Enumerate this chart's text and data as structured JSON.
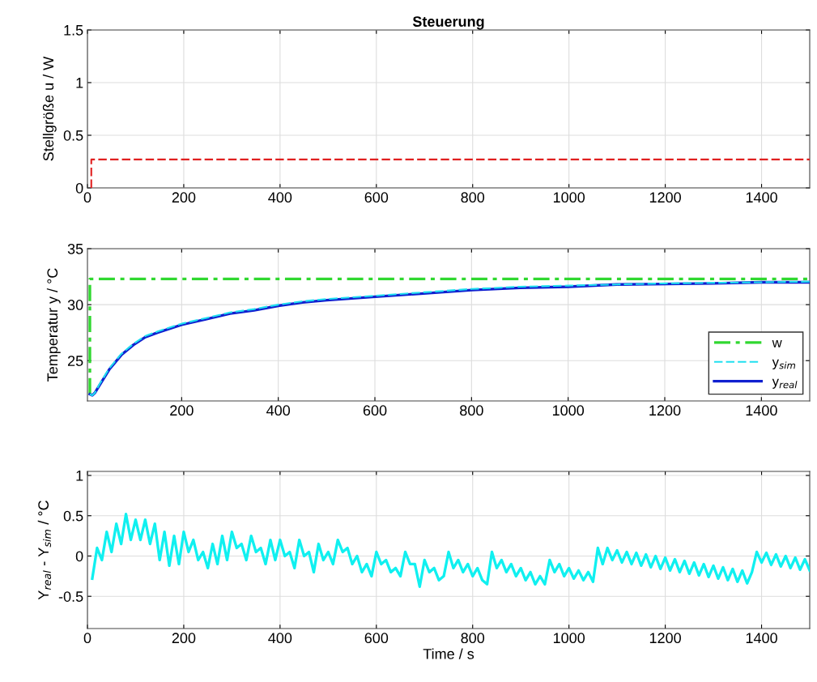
{
  "chart_data": [
    {
      "type": "line",
      "title": "Steuerung",
      "ylabel": "Stellgröße u / W",
      "xlim": [
        0,
        1500
      ],
      "ylim": [
        0,
        1.5
      ],
      "xticks": [
        0,
        200,
        400,
        600,
        800,
        1000,
        1200,
        1400
      ],
      "yticks": [
        0,
        0.5,
        1,
        1.5
      ],
      "grid": true,
      "legend": false,
      "series": [
        {
          "color": "#e02020",
          "line_style": "dashed",
          "x": [
            8,
            8,
            1500
          ],
          "values": [
            0,
            0.27,
            0.27
          ]
        }
      ]
    },
    {
      "type": "line",
      "ylabel": "Temperatur y / °C",
      "xlim": [
        5,
        1500
      ],
      "ylim": [
        21.4,
        35
      ],
      "xticks": [
        200,
        400,
        600,
        800,
        1000,
        1200,
        1400
      ],
      "yticks": [
        25,
        30,
        35
      ],
      "grid": true,
      "legend": "bottom right",
      "series": [
        {
          "name": "w",
          "color": "#30d830",
          "line_style": "dashdot",
          "x": [
            10,
            10,
            1500
          ],
          "values": [
            22,
            32.3,
            32.3
          ]
        },
        {
          "name": "y$_{sim}$",
          "color": "#20e0f0",
          "line_style": "dashed",
          "x": [
            10,
            15,
            20,
            30,
            50,
            75,
            100,
            125,
            150,
            200,
            250,
            300,
            350,
            400,
            450,
            500,
            600,
            700,
            800,
            900,
            1000,
            1100,
            1200,
            1300,
            1400,
            1500
          ],
          "values": [
            22.0,
            21.9,
            22.1,
            22.9,
            24.3,
            25.6,
            26.5,
            27.2,
            27.6,
            28.3,
            28.8,
            29.3,
            29.6,
            30.0,
            30.3,
            30.5,
            30.8,
            31.1,
            31.4,
            31.6,
            31.7,
            31.8,
            31.9,
            31.95,
            32.0,
            32.05
          ]
        },
        {
          "name": "y$_{real}$",
          "color": "#1020d0",
          "line_style": "solid",
          "x": [
            10,
            15,
            20,
            30,
            50,
            75,
            100,
            125,
            150,
            200,
            250,
            300,
            350,
            400,
            450,
            500,
            600,
            700,
            800,
            900,
            1000,
            1100,
            1200,
            1300,
            1400,
            1500
          ],
          "values": [
            22.0,
            21.9,
            22.1,
            22.8,
            24.2,
            25.5,
            26.4,
            27.1,
            27.5,
            28.2,
            28.7,
            29.2,
            29.5,
            29.9,
            30.2,
            30.4,
            30.7,
            31.0,
            31.3,
            31.5,
            31.6,
            31.8,
            31.85,
            31.9,
            32.0,
            32.0
          ]
        }
      ]
    },
    {
      "type": "line",
      "xlabel": "Time / s",
      "ylabel": "Y$_{real}$ - Y$_{sim}$ / °C",
      "xlim": [
        0,
        1500
      ],
      "ylim": [
        -0.9,
        1.05
      ],
      "xticks": [
        0,
        200,
        400,
        600,
        800,
        1000,
        1200,
        1400
      ],
      "yticks": [
        -0.5,
        0,
        0.5,
        1
      ],
      "grid": true,
      "legend": false,
      "series": [
        {
          "color": "#10f0f0",
          "line_style": "solid",
          "x": [
            10,
            20,
            30,
            40,
            50,
            60,
            70,
            80,
            90,
            100,
            110,
            120,
            130,
            140,
            150,
            160,
            170,
            180,
            190,
            200,
            210,
            220,
            230,
            240,
            250,
            260,
            270,
            280,
            290,
            300,
            310,
            320,
            330,
            340,
            350,
            360,
            370,
            380,
            390,
            400,
            410,
            420,
            430,
            440,
            450,
            460,
            470,
            480,
            490,
            500,
            510,
            520,
            530,
            540,
            550,
            560,
            570,
            580,
            590,
            600,
            610,
            620,
            630,
            640,
            650,
            660,
            670,
            680,
            690,
            700,
            710,
            720,
            730,
            740,
            750,
            760,
            770,
            780,
            790,
            800,
            810,
            820,
            830,
            840,
            850,
            860,
            870,
            880,
            890,
            900,
            910,
            920,
            930,
            940,
            950,
            960,
            970,
            980,
            990,
            1000,
            1010,
            1020,
            1030,
            1040,
            1050,
            1060,
            1070,
            1080,
            1090,
            1100,
            1110,
            1120,
            1130,
            1140,
            1150,
            1160,
            1170,
            1180,
            1190,
            1200,
            1210,
            1220,
            1230,
            1240,
            1250,
            1260,
            1270,
            1280,
            1290,
            1300,
            1310,
            1320,
            1330,
            1340,
            1350,
            1360,
            1370,
            1380,
            1390,
            1400,
            1410,
            1420,
            1430,
            1440,
            1450,
            1460,
            1470,
            1480,
            1490,
            1500
          ],
          "values": [
            -0.28,
            0.1,
            -0.05,
            0.3,
            0.05,
            0.4,
            0.15,
            0.52,
            0.2,
            0.45,
            0.2,
            0.45,
            0.15,
            0.4,
            -0.05,
            0.3,
            -0.12,
            0.25,
            -0.1,
            0.3,
            0.05,
            0.2,
            -0.05,
            0.05,
            -0.15,
            0.15,
            -0.1,
            0.25,
            -0.05,
            0.3,
            0.1,
            0.15,
            -0.05,
            0.25,
            0.05,
            0.1,
            -0.1,
            0.2,
            -0.05,
            0.2,
            0.0,
            0.05,
            -0.15,
            0.2,
            0.0,
            0.05,
            -0.2,
            0.15,
            -0.05,
            0.05,
            -0.1,
            0.2,
            0.05,
            0.1,
            -0.1,
            0.0,
            -0.2,
            -0.1,
            -0.25,
            0.05,
            -0.1,
            -0.05,
            -0.2,
            -0.15,
            -0.25,
            0.05,
            -0.1,
            -0.1,
            -0.38,
            -0.05,
            -0.2,
            -0.15,
            -0.3,
            -0.25,
            0.05,
            -0.15,
            -0.05,
            -0.2,
            -0.1,
            -0.25,
            -0.15,
            -0.3,
            -0.35,
            0.05,
            -0.15,
            -0.05,
            -0.2,
            -0.1,
            -0.25,
            -0.15,
            -0.3,
            -0.2,
            -0.35,
            -0.25,
            -0.35,
            -0.05,
            -0.2,
            -0.1,
            -0.25,
            -0.15,
            -0.28,
            -0.18,
            -0.3,
            -0.2,
            -0.32,
            0.1,
            -0.1,
            0.1,
            -0.05,
            0.07,
            -0.08,
            0.05,
            -0.1,
            0.04,
            -0.12,
            0.02,
            -0.14,
            0.0,
            -0.16,
            -0.02,
            -0.18,
            -0.04,
            -0.2,
            -0.06,
            -0.22,
            -0.08,
            -0.24,
            -0.1,
            -0.26,
            -0.12,
            -0.28,
            -0.14,
            -0.3,
            -0.16,
            -0.32,
            -0.18,
            -0.34,
            -0.2,
            0.05,
            -0.08,
            0.04,
            -0.11,
            0.02,
            -0.13,
            0.0,
            -0.15,
            -0.02,
            -0.17,
            -0.04,
            -0.18
          ]
        }
      ]
    }
  ]
}
